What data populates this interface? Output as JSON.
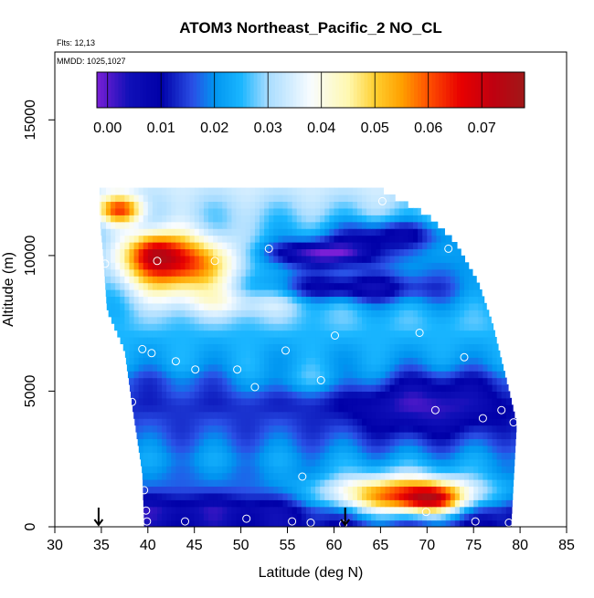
{
  "chart_data": {
    "type": "heatmap",
    "title": "ATOM3 Northeast_Pacific_2 NO_CL",
    "annotations": [
      "Flts: 12,13",
      "MMDD: 1025,1027"
    ],
    "xlabel": "Latitude (deg N)",
    "ylabel": "Altitude (m)",
    "xlim": [
      30,
      85
    ],
    "ylim": [
      0,
      17500
    ],
    "x_ticks": [
      30,
      35,
      40,
      45,
      50,
      55,
      60,
      65,
      70,
      75,
      80,
      85
    ],
    "y_ticks": [
      0,
      5000,
      10000,
      15000
    ],
    "colorbar": {
      "range": [
        -0.002,
        0.078
      ],
      "ticks": [
        0.0,
        0.01,
        0.02,
        0.03,
        0.04,
        0.05,
        0.06,
        0.07
      ],
      "tick_labels": [
        "0.00",
        "0.01",
        "0.02",
        "0.03",
        "0.04",
        "0.05",
        "0.06",
        "0.07"
      ],
      "stops": [
        [
          -0.002,
          "#7a1fd6"
        ],
        [
          0.004,
          "#1010b8"
        ],
        [
          0.01,
          "#0000a8"
        ],
        [
          0.016,
          "#2a50e6"
        ],
        [
          0.02,
          "#0095f0"
        ],
        [
          0.025,
          "#1ab6ff"
        ],
        [
          0.03,
          "#a8dcff"
        ],
        [
          0.038,
          "#f8fcff"
        ],
        [
          0.045,
          "#fff8b0"
        ],
        [
          0.05,
          "#ffd030"
        ],
        [
          0.055,
          "#ffa000"
        ],
        [
          0.06,
          "#ff5000"
        ],
        [
          0.066,
          "#e80000"
        ],
        [
          0.072,
          "#c00010"
        ],
        [
          0.078,
          "#a01818"
        ]
      ]
    },
    "outline": {
      "left": [
        [
          0,
          39.6
        ],
        [
          2000,
          39.4
        ],
        [
          4500,
          38.3
        ],
        [
          6500,
          37.5
        ],
        [
          8000,
          35.6
        ],
        [
          10000,
          35.2
        ],
        [
          11500,
          34.8
        ],
        [
          12350,
          34.8
        ]
      ],
      "right": [
        [
          0,
          79.0
        ],
        [
          3800,
          79.6
        ],
        [
          5000,
          78.8
        ],
        [
          7500,
          77.0
        ],
        [
          9000,
          75.5
        ],
        [
          10500,
          73.0
        ],
        [
          11500,
          70.0
        ],
        [
          12350,
          65.3
        ]
      ]
    },
    "fields": {
      "base": [
        [
          0,
          0.007
        ],
        [
          600,
          0.004
        ],
        [
          1500,
          0.017
        ],
        [
          2500,
          0.021
        ],
        [
          3500,
          0.016
        ],
        [
          4500,
          0.013
        ],
        [
          5400,
          0.016
        ],
        [
          6000,
          0.022
        ],
        [
          6800,
          0.024
        ],
        [
          7500,
          0.026
        ],
        [
          8500,
          0.022
        ],
        [
          9500,
          0.02
        ],
        [
          10500,
          0.023
        ],
        [
          11500,
          0.028
        ],
        [
          12350,
          0.033
        ]
      ],
      "features": [
        {
          "lat": 67.5,
          "alt": 1100,
          "rlat": 8.5,
          "ralt": 800,
          "amp": 0.048
        },
        {
          "lat": 70.5,
          "alt": 1000,
          "rlat": 3.0,
          "ralt": 500,
          "amp": 0.022
        },
        {
          "lat": 43.0,
          "alt": 9700,
          "rlat": 6.5,
          "ralt": 1100,
          "amp": 0.045
        },
        {
          "lat": 40.5,
          "alt": 10200,
          "rlat": 2.5,
          "ralt": 700,
          "amp": 0.018
        },
        {
          "lat": 37.0,
          "alt": 11700,
          "rlat": 2.5,
          "ralt": 500,
          "amp": 0.03
        },
        {
          "lat": 59.0,
          "alt": 10100,
          "rlat": 6.0,
          "ralt": 450,
          "amp": -0.024
        },
        {
          "lat": 66.0,
          "alt": 10800,
          "rlat": 6.0,
          "ralt": 500,
          "amp": -0.016
        },
        {
          "lat": 62.0,
          "alt": 8800,
          "rlat": 9.0,
          "ralt": 500,
          "amp": -0.016
        },
        {
          "lat": 70.0,
          "alt": 4500,
          "rlat": 8.0,
          "ralt": 1200,
          "amp": -0.012
        },
        {
          "lat": 58.0,
          "alt": 5400,
          "rlat": 8.0,
          "ralt": 500,
          "amp": 0.008
        },
        {
          "lat": 50.0,
          "alt": 8300,
          "rlat": 9.0,
          "ralt": 600,
          "amp": 0.012
        }
      ]
    },
    "observations": [
      [
        65.2,
        12000
      ],
      [
        53.0,
        10250
      ],
      [
        72.3,
        10250
      ],
      [
        41.0,
        9800
      ],
      [
        35.4,
        9700
      ],
      [
        47.2,
        9800
      ],
      [
        36.0,
        7150
      ],
      [
        60.1,
        7050
      ],
      [
        69.2,
        7150
      ],
      [
        39.4,
        6550
      ],
      [
        40.4,
        6400
      ],
      [
        43.0,
        6100
      ],
      [
        45.1,
        5800
      ],
      [
        49.6,
        5800
      ],
      [
        54.8,
        6500
      ],
      [
        74.0,
        6250
      ],
      [
        58.6,
        5400
      ],
      [
        51.5,
        5150
      ],
      [
        38.3,
        4600
      ],
      [
        70.9,
        4300
      ],
      [
        76.0,
        4000
      ],
      [
        78.0,
        4300
      ],
      [
        79.3,
        3850
      ],
      [
        56.6,
        1850
      ],
      [
        39.6,
        1350
      ],
      [
        39.8,
        600
      ],
      [
        69.9,
        550
      ],
      [
        44.0,
        200
      ],
      [
        50.6,
        300
      ],
      [
        55.5,
        200
      ],
      [
        57.5,
        150
      ],
      [
        61.0,
        100
      ],
      [
        75.2,
        200
      ],
      [
        78.8,
        150
      ],
      [
        39.9,
        200
      ]
    ],
    "markers": [
      {
        "lat": 34.7,
        "symbol": "arrow-down"
      },
      {
        "lat": 61.2,
        "symbol": "arrow-down"
      }
    ]
  }
}
